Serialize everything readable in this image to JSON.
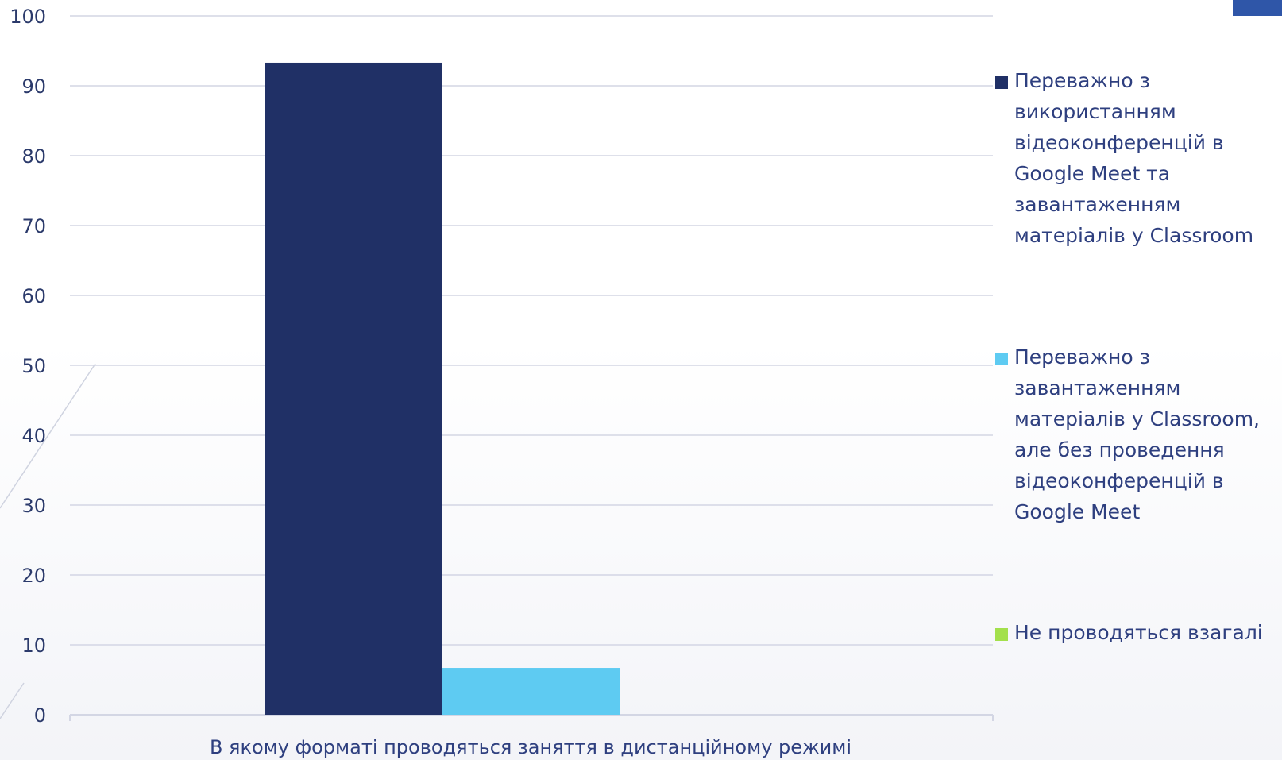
{
  "chart_data": {
    "type": "bar",
    "title": "",
    "xlabel": "В якому форматі проводяться заняття в дистанційному режимі",
    "ylabel": "",
    "ylim": [
      0,
      100
    ],
    "yticks": [
      0,
      10,
      20,
      30,
      40,
      50,
      60,
      70,
      80,
      90,
      100
    ],
    "grid": true,
    "legend_position": "right",
    "categories": [
      "В якому форматі проводяться заняття в дистанційному режимі"
    ],
    "series": [
      {
        "name": "Переважно з використанням відеоконференцій в Google Meet та завантаженням матеріалів у Classroom",
        "values": [
          93.3
        ],
        "color": "#203066"
      },
      {
        "name": "Переважно з завантаженням матеріалів у Classroom, але без проведення відеоконференцій в Google Meet",
        "values": [
          6.7
        ],
        "color": "#5ecbf2"
      },
      {
        "name": "Не проводяться взагалі",
        "values": [
          0
        ],
        "color": "#a3e04c"
      }
    ]
  },
  "colors": {
    "grid": "#d3d6e4",
    "axis_text": "#2b3a6b",
    "legend_text": "#2e3f7f",
    "corner_accent": "#2f56a8"
  }
}
